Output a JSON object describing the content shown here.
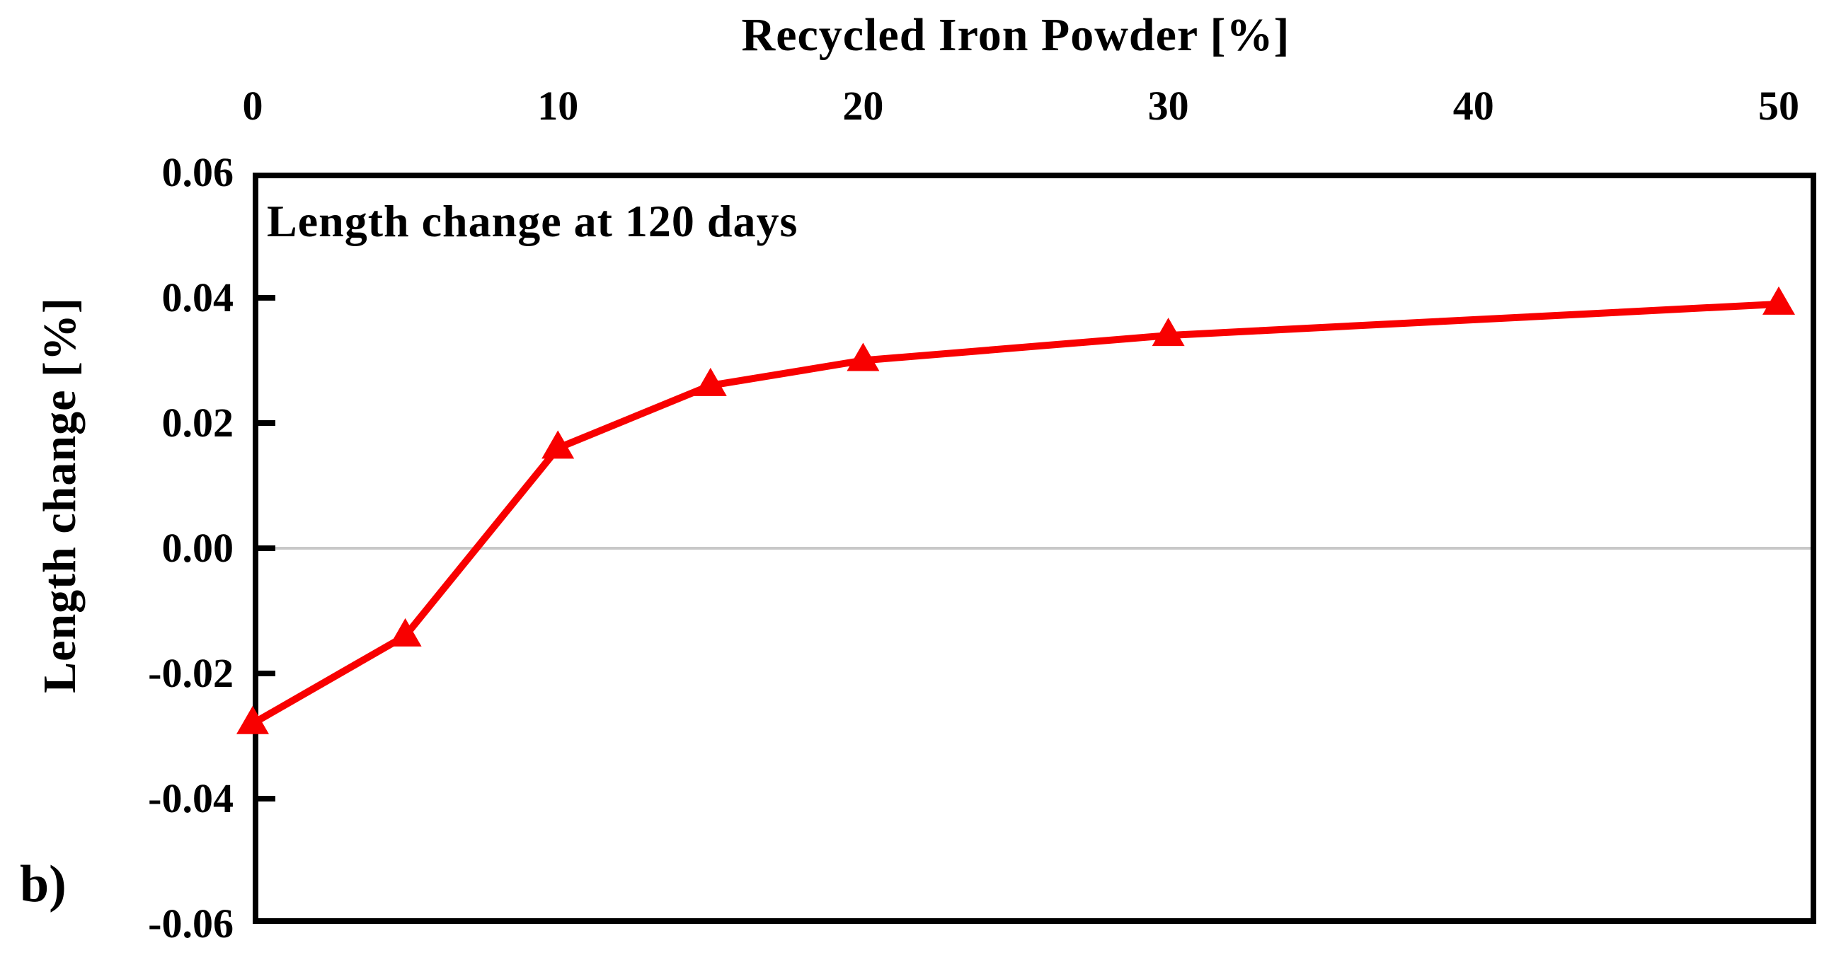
{
  "figure": {
    "panel_label": "b)",
    "background": "#ffffff"
  },
  "chart_data": {
    "type": "line",
    "title": "",
    "xlabel": "Recycled Iron Powder [%]",
    "ylabel": "Length change [%]",
    "annotation": "Length change at 120 days",
    "x": [
      0,
      5,
      10,
      15,
      20,
      30,
      50
    ],
    "series": [
      {
        "name": "Length change at 120 days",
        "values": [
          -0.028,
          -0.014,
          0.016,
          0.026,
          0.03,
          0.034,
          0.039
        ]
      }
    ],
    "x_tick_values": [
      0,
      10,
      20,
      30,
      40,
      50
    ],
    "x_tick_labels": [
      "0",
      "10",
      "20",
      "30",
      "40",
      "50"
    ],
    "y_tick_values": [
      0.06,
      0.04,
      0.02,
      0.0,
      -0.02,
      -0.04,
      -0.06
    ],
    "y_tick_labels": [
      "0.06",
      "0.04",
      "0.02",
      "0.00",
      "-0.02",
      "-0.04",
      "-0.06"
    ],
    "y_inner_tick_values": [
      0.04,
      0.02,
      0.0,
      -0.02,
      -0.04
    ],
    "xlim": [
      0,
      51.2
    ],
    "ylim": [
      -0.06,
      0.06
    ],
    "grid_y_values": [
      0
    ],
    "legend_position": "none",
    "x_axis_position": "top",
    "marker": "triangle-up",
    "line_color": "#f80000",
    "grid_color": "#c8c8c8",
    "axis_color": "#000000"
  }
}
